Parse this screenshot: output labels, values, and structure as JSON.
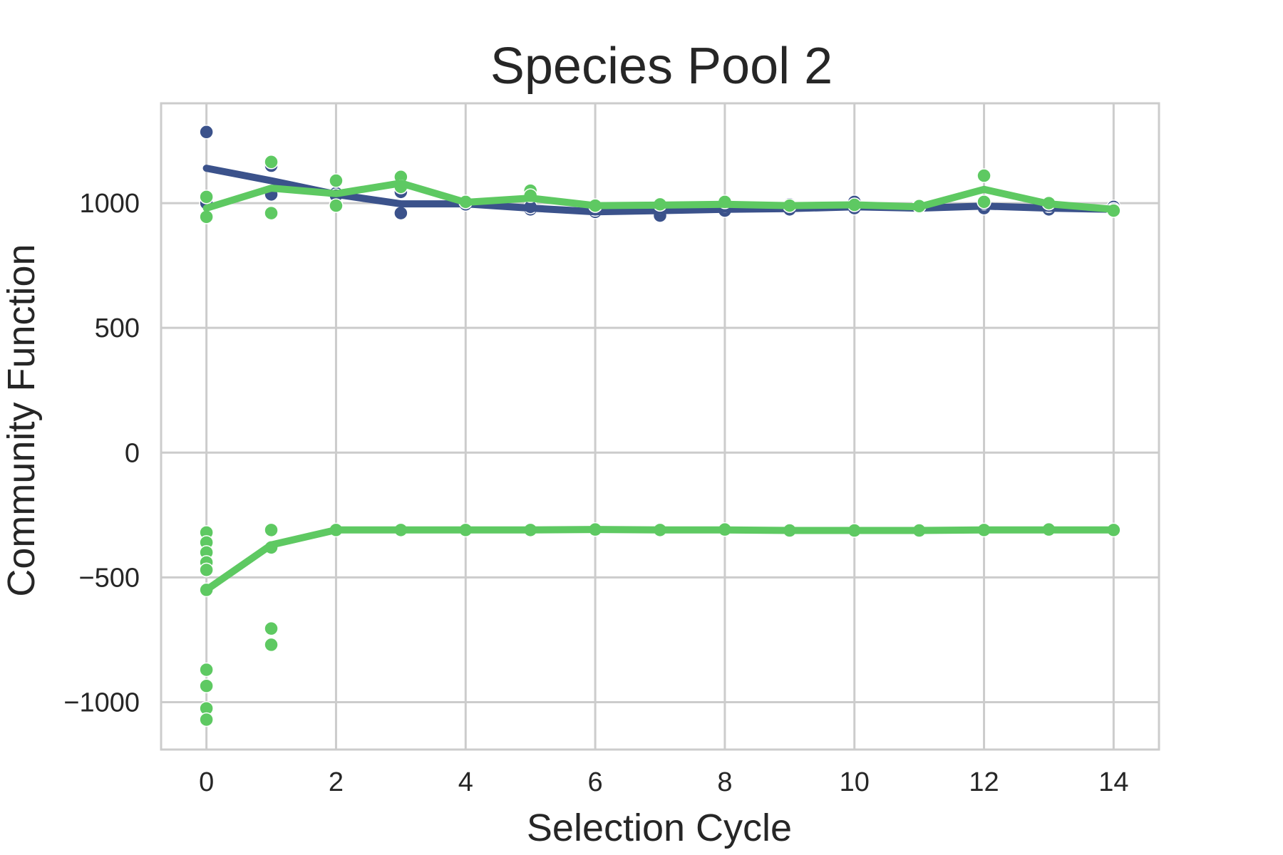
{
  "chart_data": {
    "type": "line",
    "title": "Species Pool 2",
    "xlabel": "Selection Cycle",
    "ylabel": "Community Function",
    "xlim": [
      -0.7,
      14.7
    ],
    "ylim": [
      -1190,
      1400
    ],
    "xticks": [
      0,
      2,
      4,
      6,
      8,
      10,
      12,
      14
    ],
    "xtick_labels": [
      "0",
      "2",
      "4",
      "6",
      "8",
      "10",
      "12",
      "14"
    ],
    "yticks": [
      -1000,
      -500,
      0,
      500,
      1000
    ],
    "ytick_labels": [
      "−1000",
      "−500",
      "0",
      "500",
      "1000"
    ],
    "grid": true,
    "legend": "none",
    "series": [
      {
        "color": "#3b528b",
        "line": {
          "x": [
            0,
            1,
            2,
            3,
            4,
            5,
            6,
            7,
            8,
            9,
            10,
            11,
            12,
            13,
            14
          ],
          "y": [
            1140,
            1090,
            1035,
            997,
            997,
            980,
            965,
            970,
            975,
            978,
            985,
            980,
            988,
            980,
            975
          ]
        },
        "points": [
          [
            0,
            1285
          ],
          [
            0,
            1000
          ],
          [
            0,
            945
          ],
          [
            1,
            1150
          ],
          [
            1,
            1035
          ],
          [
            2,
            1040
          ],
          [
            2,
            1030
          ],
          [
            3,
            1045
          ],
          [
            3,
            960
          ],
          [
            4,
            1005
          ],
          [
            4,
            995
          ],
          [
            5,
            975
          ],
          [
            5,
            985
          ],
          [
            6,
            965
          ],
          [
            6,
            975
          ],
          [
            7,
            950
          ],
          [
            7,
            995
          ],
          [
            7,
            985
          ],
          [
            8,
            970
          ],
          [
            8,
            990
          ],
          [
            9,
            975
          ],
          [
            9,
            995
          ],
          [
            10,
            1005
          ],
          [
            10,
            980
          ],
          [
            11,
            985
          ],
          [
            11,
            990
          ],
          [
            12,
            980
          ],
          [
            12,
            1000
          ],
          [
            13,
            975
          ],
          [
            13,
            990
          ],
          [
            14,
            985
          ],
          [
            14,
            975
          ]
        ]
      },
      {
        "color": "#5ec962",
        "line": {
          "x": [
            0,
            1,
            2,
            3,
            4,
            5,
            6,
            7,
            8,
            9,
            10,
            11,
            12,
            13,
            14
          ],
          "y": [
            980,
            1060,
            1038,
            1080,
            1003,
            1020,
            990,
            992,
            995,
            990,
            993,
            985,
            1055,
            997,
            975
          ]
        },
        "points": [
          [
            0,
            1025
          ],
          [
            0,
            945
          ],
          [
            1,
            1165
          ],
          [
            1,
            960
          ],
          [
            2,
            1090
          ],
          [
            2,
            990
          ],
          [
            3,
            1105
          ],
          [
            3,
            1065
          ],
          [
            4,
            1005
          ],
          [
            5,
            1050
          ],
          [
            5,
            1030
          ],
          [
            6,
            990
          ],
          [
            7,
            995
          ],
          [
            8,
            1005
          ],
          [
            9,
            990
          ],
          [
            10,
            993
          ],
          [
            11,
            988
          ],
          [
            12,
            1110
          ],
          [
            12,
            1005
          ],
          [
            13,
            1000
          ],
          [
            14,
            970
          ]
        ]
      },
      {
        "color": "#5ec962",
        "line": {
          "x": [
            0,
            1,
            2,
            3,
            4,
            5,
            6,
            7,
            8,
            9,
            10,
            11,
            12,
            13,
            14
          ],
          "y": [
            -550,
            -370,
            -310,
            -310,
            -310,
            -310,
            -308,
            -310,
            -310,
            -312,
            -312,
            -312,
            -310,
            -310,
            -310
          ]
        },
        "points": [
          [
            0,
            -320
          ],
          [
            0,
            -360
          ],
          [
            0,
            -400
          ],
          [
            0,
            -440
          ],
          [
            0,
            -470
          ],
          [
            0,
            -550
          ],
          [
            0,
            -870
          ],
          [
            0,
            -935
          ],
          [
            0,
            -1025
          ],
          [
            0,
            -1070
          ],
          [
            1,
            -310
          ],
          [
            1,
            -380
          ],
          [
            1,
            -705
          ],
          [
            1,
            -770
          ],
          [
            2,
            -310
          ],
          [
            3,
            -310
          ],
          [
            4,
            -310
          ],
          [
            5,
            -310
          ],
          [
            6,
            -308
          ],
          [
            7,
            -310
          ],
          [
            8,
            -308
          ],
          [
            9,
            -312
          ],
          [
            10,
            -312
          ],
          [
            11,
            -312
          ],
          [
            12,
            -310
          ],
          [
            13,
            -308
          ],
          [
            14,
            -310
          ]
        ]
      }
    ]
  }
}
